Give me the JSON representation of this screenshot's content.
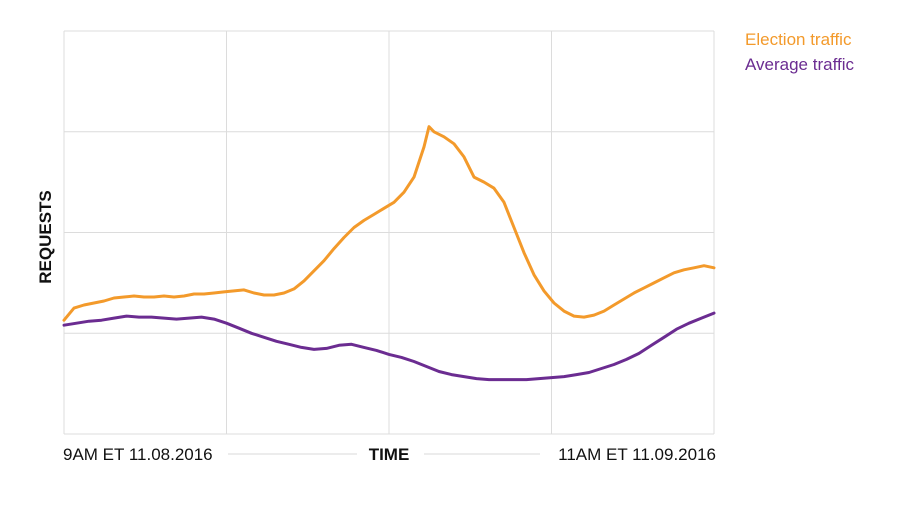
{
  "chart_data": {
    "type": "line",
    "xlabel": "TIME",
    "ylabel": "REQUESTS",
    "x_tick_labels": {
      "start": "9AM ET 11.08.2016",
      "end": "11AM ET 11.09.2016"
    },
    "xlim": [
      0,
      26
    ],
    "ylim": [
      0,
      4
    ],
    "grid": true,
    "legend_position": "top-right",
    "series": [
      {
        "name": "Election traffic",
        "color": "#F39A2B",
        "points": [
          [
            0,
            1.13
          ],
          [
            0.4,
            1.25
          ],
          [
            0.8,
            1.28
          ],
          [
            1.2,
            1.3
          ],
          [
            1.6,
            1.32
          ],
          [
            2,
            1.35
          ],
          [
            2.4,
            1.36
          ],
          [
            2.8,
            1.37
          ],
          [
            3.2,
            1.36
          ],
          [
            3.6,
            1.36
          ],
          [
            4,
            1.37
          ],
          [
            4.4,
            1.36
          ],
          [
            4.8,
            1.37
          ],
          [
            5.2,
            1.39
          ],
          [
            5.6,
            1.39
          ],
          [
            6,
            1.4
          ],
          [
            6.4,
            1.41
          ],
          [
            6.8,
            1.42
          ],
          [
            7.2,
            1.43
          ],
          [
            7.6,
            1.4
          ],
          [
            8,
            1.38
          ],
          [
            8.4,
            1.38
          ],
          [
            8.8,
            1.4
          ],
          [
            9.2,
            1.44
          ],
          [
            9.6,
            1.52
          ],
          [
            10,
            1.62
          ],
          [
            10.4,
            1.72
          ],
          [
            10.8,
            1.84
          ],
          [
            11.2,
            1.95
          ],
          [
            11.6,
            2.05
          ],
          [
            12,
            2.12
          ],
          [
            12.4,
            2.18
          ],
          [
            12.8,
            2.24
          ],
          [
            13.2,
            2.3
          ],
          [
            13.6,
            2.4
          ],
          [
            14,
            2.55
          ],
          [
            14.4,
            2.85
          ],
          [
            14.6,
            3.05
          ],
          [
            14.8,
            3.0
          ],
          [
            15.2,
            2.95
          ],
          [
            15.6,
            2.88
          ],
          [
            16,
            2.75
          ],
          [
            16.4,
            2.55
          ],
          [
            16.8,
            2.5
          ],
          [
            17.2,
            2.44
          ],
          [
            17.6,
            2.3
          ],
          [
            18,
            2.05
          ],
          [
            18.4,
            1.8
          ],
          [
            18.8,
            1.58
          ],
          [
            19.2,
            1.42
          ],
          [
            19.6,
            1.3
          ],
          [
            20,
            1.22
          ],
          [
            20.4,
            1.17
          ],
          [
            20.8,
            1.16
          ],
          [
            21.2,
            1.18
          ],
          [
            21.6,
            1.22
          ],
          [
            22,
            1.28
          ],
          [
            22.4,
            1.34
          ],
          [
            22.8,
            1.4
          ],
          [
            23.2,
            1.45
          ],
          [
            23.6,
            1.5
          ],
          [
            24,
            1.55
          ],
          [
            24.4,
            1.6
          ],
          [
            24.8,
            1.63
          ],
          [
            25.2,
            1.65
          ],
          [
            25.6,
            1.67
          ],
          [
            26,
            1.65
          ]
        ]
      },
      {
        "name": "Average traffic",
        "color": "#6B2C91",
        "points": [
          [
            0,
            1.08
          ],
          [
            0.5,
            1.1
          ],
          [
            1,
            1.12
          ],
          [
            1.5,
            1.13
          ],
          [
            2,
            1.15
          ],
          [
            2.5,
            1.17
          ],
          [
            3,
            1.16
          ],
          [
            3.5,
            1.16
          ],
          [
            4,
            1.15
          ],
          [
            4.5,
            1.14
          ],
          [
            5,
            1.15
          ],
          [
            5.5,
            1.16
          ],
          [
            6,
            1.14
          ],
          [
            6.5,
            1.1
          ],
          [
            7,
            1.05
          ],
          [
            7.5,
            1.0
          ],
          [
            8,
            0.96
          ],
          [
            8.5,
            0.92
          ],
          [
            9,
            0.89
          ],
          [
            9.5,
            0.86
          ],
          [
            10,
            0.84
          ],
          [
            10.5,
            0.85
          ],
          [
            11,
            0.88
          ],
          [
            11.5,
            0.89
          ],
          [
            12,
            0.86
          ],
          [
            12.5,
            0.83
          ],
          [
            13,
            0.79
          ],
          [
            13.5,
            0.76
          ],
          [
            14,
            0.72
          ],
          [
            14.5,
            0.67
          ],
          [
            15,
            0.62
          ],
          [
            15.5,
            0.59
          ],
          [
            16,
            0.57
          ],
          [
            16.5,
            0.55
          ],
          [
            17,
            0.54
          ],
          [
            17.5,
            0.54
          ],
          [
            18,
            0.54
          ],
          [
            18.5,
            0.54
          ],
          [
            19,
            0.55
          ],
          [
            19.5,
            0.56
          ],
          [
            20,
            0.57
          ],
          [
            20.5,
            0.59
          ],
          [
            21,
            0.61
          ],
          [
            21.5,
            0.65
          ],
          [
            22,
            0.69
          ],
          [
            22.5,
            0.74
          ],
          [
            23,
            0.8
          ],
          [
            23.5,
            0.88
          ],
          [
            24,
            0.96
          ],
          [
            24.5,
            1.04
          ],
          [
            25,
            1.1
          ],
          [
            25.5,
            1.15
          ],
          [
            26,
            1.2
          ]
        ]
      }
    ]
  }
}
